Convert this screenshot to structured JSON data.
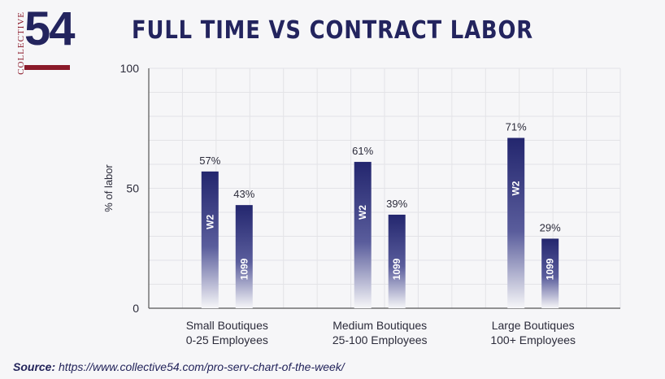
{
  "logo": {
    "brand_text": "COLLECTIVE",
    "brand_number": "54"
  },
  "source": {
    "label": "Source:",
    "url": "https://www.collective54.com/pro-serv-chart-of-the-week/"
  },
  "chart_data": {
    "type": "bar",
    "title": "FULL TIME VS CONTRACT LABOR",
    "ylabel": "% of labor",
    "xlabel": "",
    "ylim": [
      0,
      100
    ],
    "yticks": [
      0,
      50,
      100
    ],
    "grid": true,
    "categories": [
      [
        "Small Boutiques",
        "0-25 Employees"
      ],
      [
        "Medium Boutiques",
        "25-100 Employees"
      ],
      [
        "Large Boutiques",
        "100+ Employees"
      ]
    ],
    "series": [
      {
        "name": "W2",
        "values": [
          57,
          61,
          71
        ],
        "labels": [
          "57%",
          "61%",
          "71%"
        ]
      },
      {
        "name": "1099",
        "values": [
          43,
          39,
          29
        ],
        "labels": [
          "43%",
          "39%",
          "29%"
        ]
      }
    ],
    "colors": {
      "bar": "#23266e",
      "axis": "#555555",
      "grid": "#e3e3e7",
      "text": "#2b2b3a"
    }
  }
}
